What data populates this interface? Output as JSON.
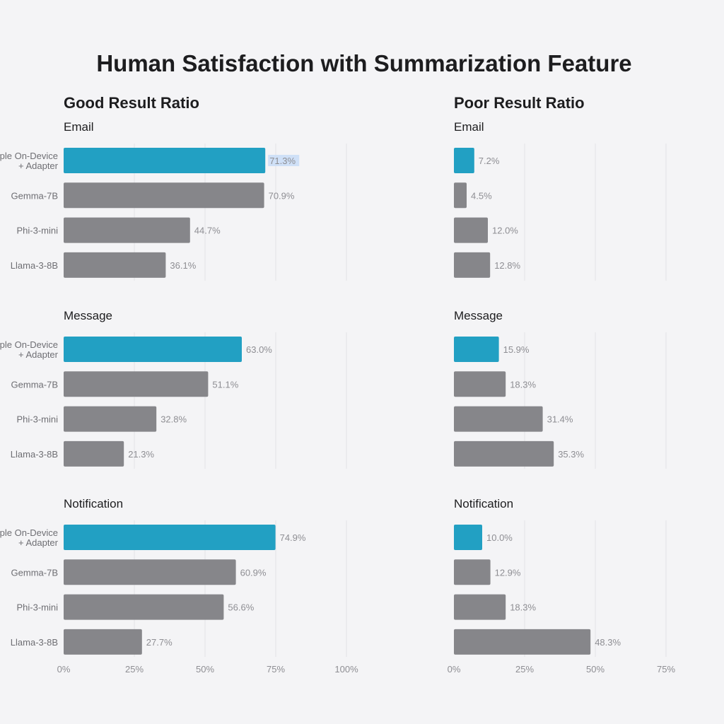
{
  "chart_data": {
    "type": "bar",
    "orientation": "horizontal",
    "title": "Human Satisfaction with Summarization Feature",
    "colors": {
      "highlight": "#22a0c3",
      "default": "#86868a",
      "grid": "#e2e2e6"
    },
    "categories": [
      "Apple On-Device + Adapter",
      "Gemma-7B",
      "Phi-3-mini",
      "Llama-3-8B"
    ],
    "category_display": [
      [
        "ple On-Device",
        "+ Adapter"
      ],
      [
        "Gemma-7B"
      ],
      [
        "Phi-3-mini"
      ],
      [
        "Llama-3-8B"
      ]
    ],
    "panels": [
      {
        "title": "Good Result Ratio",
        "xlim": [
          0,
          100
        ],
        "ticks": [
          0,
          25,
          50,
          75,
          100
        ],
        "tick_labels": [
          "0%",
          "25%",
          "50%",
          "75%",
          "100%"
        ],
        "groups": [
          {
            "name": "Email",
            "values": [
              71.3,
              70.9,
              44.7,
              36.1
            ],
            "labels": [
              "71.3%",
              "70.9%",
              "44.7%",
              "36.1%"
            ]
          },
          {
            "name": "Message",
            "values": [
              63.0,
              51.1,
              32.8,
              21.3
            ],
            "labels": [
              "63.0%",
              "51.1%",
              "32.8%",
              "21.3%"
            ]
          },
          {
            "name": "Notification",
            "values": [
              74.9,
              60.9,
              56.6,
              27.7
            ],
            "labels": [
              "74.9%",
              "60.9%",
              "56.6%",
              "27.7%"
            ]
          }
        ]
      },
      {
        "title": "Poor Result Ratio",
        "xlim": [
          0,
          75
        ],
        "ticks": [
          0,
          25,
          50,
          75
        ],
        "tick_labels": [
          "0%",
          "25%",
          "50%",
          "75%"
        ],
        "groups": [
          {
            "name": "Email",
            "values": [
              7.2,
              4.5,
              12.0,
              12.8
            ],
            "labels": [
              "7.2%",
              "4.5%",
              "12.0%",
              "12.8%"
            ]
          },
          {
            "name": "Message",
            "values": [
              15.9,
              18.3,
              31.4,
              35.3
            ],
            "labels": [
              "15.9%",
              "18.3%",
              "31.4%",
              "35.3%"
            ]
          },
          {
            "name": "Notification",
            "values": [
              10.0,
              12.9,
              18.3,
              48.3
            ],
            "labels": [
              "10.0%",
              "12.9%",
              "18.3%",
              "48.3%"
            ]
          }
        ]
      }
    ]
  }
}
